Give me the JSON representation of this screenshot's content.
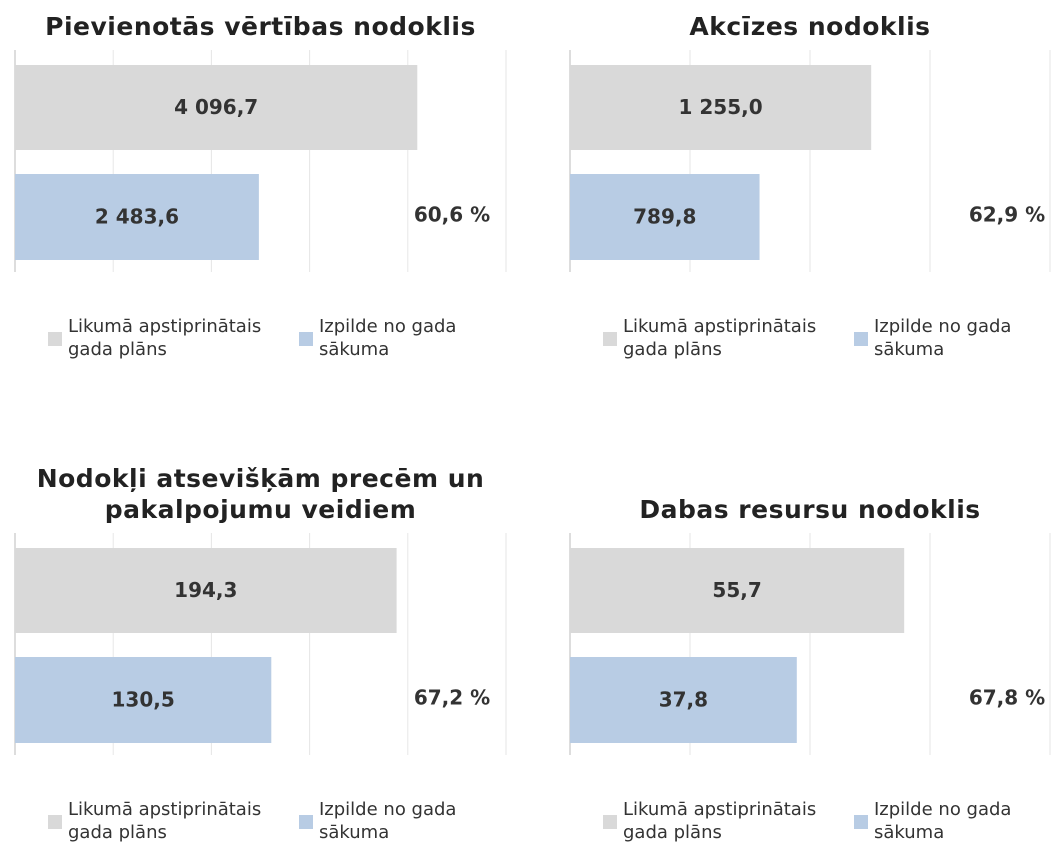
{
  "chart_data": [
    {
      "type": "bar",
      "title": "Pievienotās vērtības nodoklis",
      "annotation": "60,6 %",
      "series": [
        {
          "name": "Likumā apstiprinātais gada plāns",
          "color": "#d9d9d9",
          "values": [
            4096.7
          ],
          "value_labels": [
            "4 096,7"
          ]
        },
        {
          "name": "Izpilde no gada sākuma",
          "color": "#b8cce4",
          "values": [
            2483.6
          ],
          "value_labels": [
            "2 483,6"
          ]
        }
      ],
      "xlim": [
        0,
        5000
      ],
      "xticks": [
        0,
        1000,
        2000,
        3000,
        4000,
        5000
      ],
      "grid": true
    },
    {
      "type": "bar",
      "title": "Akcīzes nodoklis",
      "annotation": "62,9 %",
      "series": [
        {
          "name": "Likumā apstiprinātais gada plāns",
          "color": "#d9d9d9",
          "values": [
            1255.0
          ],
          "value_labels": [
            "1 255,0"
          ]
        },
        {
          "name": "Izpilde no gada sākuma",
          "color": "#b8cce4",
          "values": [
            789.8
          ],
          "value_labels": [
            "789,8"
          ]
        }
      ],
      "xlim": [
        0,
        2000
      ],
      "xticks": [
        0,
        500,
        1000,
        1500,
        2000
      ],
      "grid": true
    },
    {
      "type": "bar",
      "title": "Nodokļi atsevišķām precēm un pakalpojumu veidiem",
      "annotation": "67,2 %",
      "series": [
        {
          "name": "Likumā apstiprinātais gada plāns",
          "color": "#d9d9d9",
          "values": [
            194.3
          ],
          "value_labels": [
            "194,3"
          ]
        },
        {
          "name": "Izpilde no gada sākuma",
          "color": "#b8cce4",
          "values": [
            130.5
          ],
          "value_labels": [
            "130,5"
          ]
        }
      ],
      "xlim": [
        0,
        250
      ],
      "xticks": [
        0,
        50,
        100,
        150,
        200,
        250
      ],
      "grid": true
    },
    {
      "type": "bar",
      "title": "Dabas resursu nodoklis",
      "annotation": "67,8 %",
      "series": [
        {
          "name": "Likumā apstiprinātais gada plāns",
          "color": "#d9d9d9",
          "values": [
            55.7
          ],
          "value_labels": [
            "55,7"
          ]
        },
        {
          "name": "Izpilde no gada sākuma",
          "color": "#b8cce4",
          "values": [
            37.8
          ],
          "value_labels": [
            "37,8"
          ]
        }
      ],
      "xlim": [
        0,
        80
      ],
      "xticks": [
        0,
        20,
        40,
        60,
        80
      ],
      "grid": true
    }
  ]
}
